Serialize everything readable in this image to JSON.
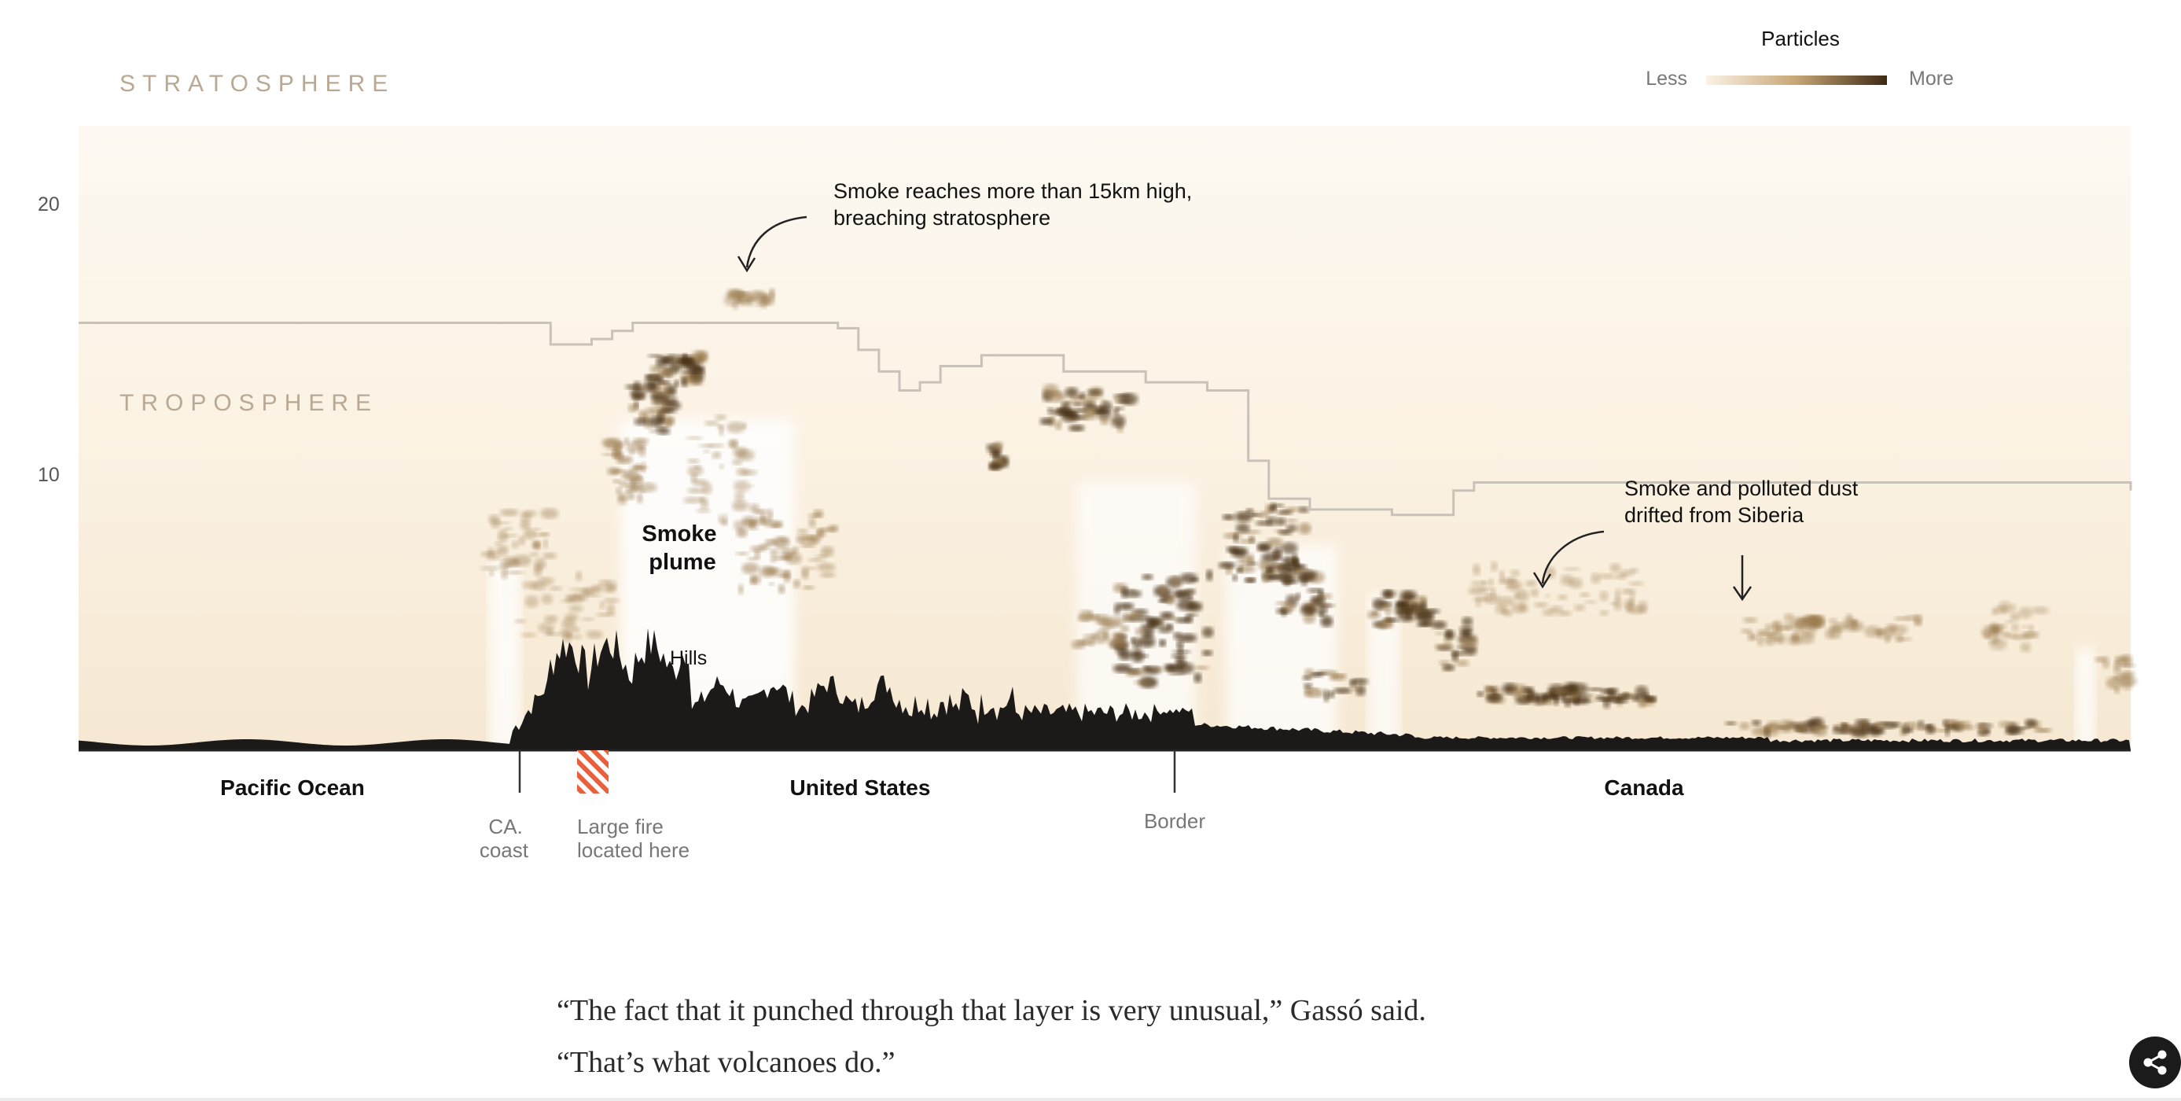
{
  "chart_data": {
    "type": "area",
    "y_ticks": [
      "20",
      "10"
    ],
    "ylim": [
      0,
      20
    ],
    "layers": {
      "stratosphere": "STRATOSPHERE",
      "troposphere": "TROPOSPHERE"
    },
    "legend": {
      "title": "Particles",
      "less": "Less",
      "more": "More",
      "placement": "top-right",
      "color_low": "#fbf3e6",
      "color_high": "#3e2a14"
    },
    "regions": [
      {
        "label": "Pacific Ocean"
      },
      {
        "label": "United States"
      },
      {
        "label": "Canada"
      }
    ],
    "markers": {
      "coast": [
        "CA.",
        "coast"
      ],
      "fire": [
        "Large fire",
        "located here"
      ],
      "border": "Border"
    },
    "annotations": {
      "top_smoke": [
        "Smoke reaches more than 15km high,",
        "breaching stratosphere"
      ],
      "plume": [
        "Smoke",
        "plume"
      ],
      "hills": "Hills",
      "siberia": [
        "Smoke and polluted dust",
        "drifted from Siberia"
      ]
    },
    "tropopause_km": [
      [
        0,
        15.8
      ],
      [
        22,
        15.8
      ],
      [
        23,
        15.0
      ],
      [
        25,
        15.2
      ],
      [
        26,
        15.5
      ],
      [
        27,
        15.8
      ],
      [
        33,
        15.8
      ],
      [
        37,
        15.6
      ],
      [
        38,
        14.8
      ],
      [
        39,
        14.0
      ],
      [
        40,
        13.3
      ],
      [
        41,
        13.6
      ],
      [
        42,
        14.2
      ],
      [
        44,
        14.6
      ],
      [
        48,
        14.0
      ],
      [
        52,
        13.6
      ],
      [
        55,
        13.3
      ],
      [
        57,
        10.7
      ],
      [
        58,
        9.3
      ],
      [
        60,
        8.9
      ],
      [
        64,
        8.7
      ],
      [
        67,
        9.6
      ],
      [
        68,
        9.9
      ],
      [
        100,
        9.6
      ]
    ],
    "colors": {
      "terrain": "#1c1a19",
      "background": "#fbf1e1",
      "tropopause": "#c9c2b8",
      "fire_marker": "#e8603c",
      "smoke_dark": "#4a3218"
    }
  },
  "quote": {
    "line1": "“The fact that it punched through that layer is very unusual,” Gassó said.",
    "line2": "“That’s what volcanoes do.”"
  },
  "share": {
    "icon": "share-icon"
  }
}
